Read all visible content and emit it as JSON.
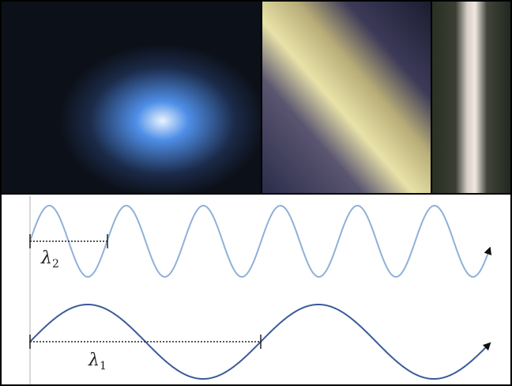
{
  "labels": [
    {
      "symbol": "λ",
      "subscript": "2"
    },
    {
      "symbol": "λ",
      "subscript": "1"
    }
  ]
}
